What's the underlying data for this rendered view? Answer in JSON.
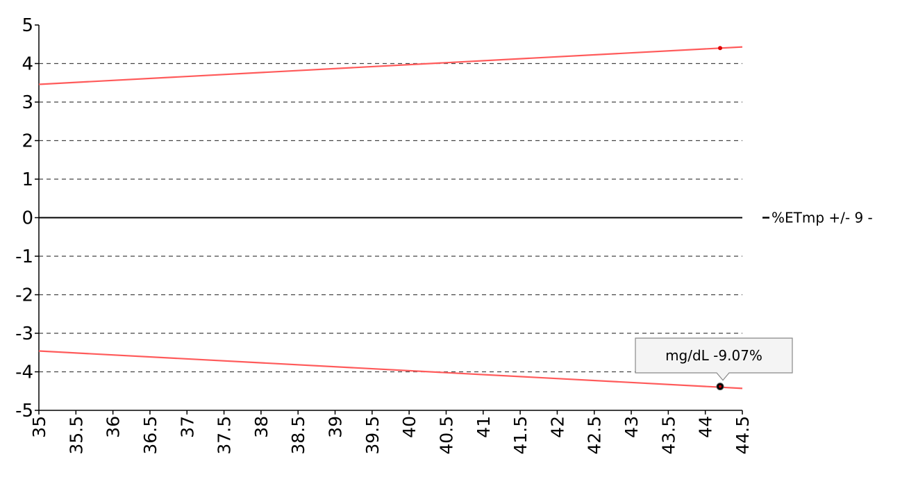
{
  "chart_data": {
    "type": "line",
    "title": "",
    "xlabel": "",
    "ylabel": "",
    "xlim": [
      35,
      44.5
    ],
    "ylim": [
      -5,
      5
    ],
    "x_ticks": [
      "35",
      "35.5",
      "36",
      "36.5",
      "37",
      "37.5",
      "38",
      "38.5",
      "39",
      "39.5",
      "40",
      "40.5",
      "41",
      "41.5",
      "42",
      "42.5",
      "43",
      "43.5",
      "44",
      "44.5"
    ],
    "y_ticks": [
      "5",
      "4",
      "3",
      "2",
      "1",
      "0",
      "-1",
      "-2",
      "-3",
      "-4",
      "-5"
    ],
    "grid": "horizontal dashed",
    "legend": {
      "placement": "right",
      "entries": [
        {
          "label": "%ETmp +/- 9 -",
          "color": "#000000"
        }
      ]
    },
    "series": [
      {
        "name": "%ETmp +/- 9 -",
        "color": "#000000",
        "x": [
          35,
          44.5
        ],
        "y": [
          0,
          0
        ]
      },
      {
        "color": "#ff5a5a",
        "x": [
          35,
          44.5
        ],
        "y": [
          3.46,
          4.43
        ]
      },
      {
        "color": "#ff5a5a",
        "x": [
          35,
          44.5
        ],
        "y": [
          -3.46,
          -4.43
        ]
      }
    ],
    "points": [
      {
        "x": 44.2,
        "y": 4.4,
        "color": "#e00000"
      },
      {
        "x": 44.2,
        "y": -4.38,
        "color": "#000000",
        "highlighted": true
      }
    ],
    "tooltip": {
      "text": "mg/dL -9.07%"
    }
  }
}
